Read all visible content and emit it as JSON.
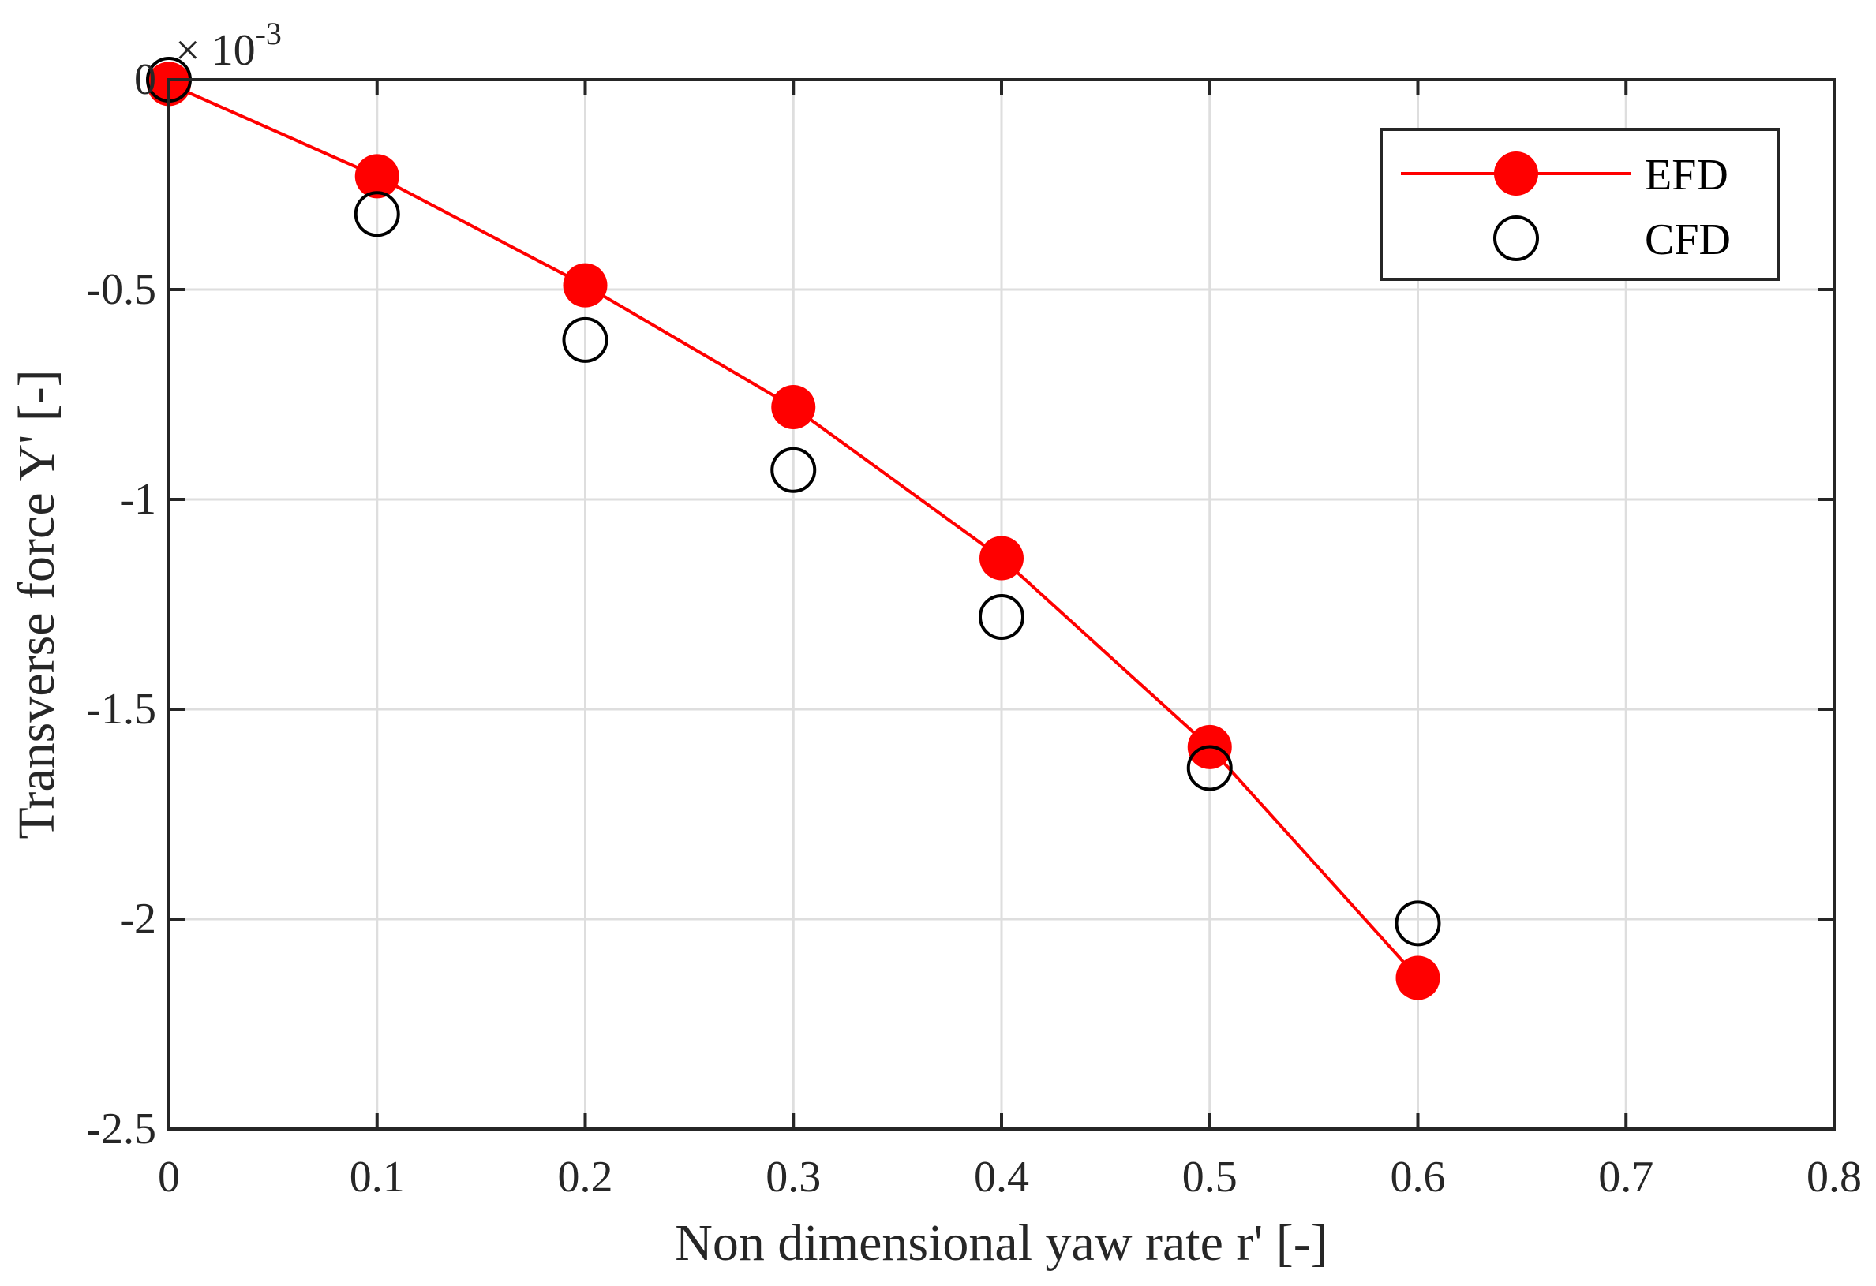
{
  "chart_data": {
    "type": "line",
    "title": "",
    "xlabel": "Non dimensional yaw rate r' [-]",
    "ylabel": "Transverse force Y' [-]",
    "y_multiplier_label": "× 10",
    "y_multiplier_exponent": "-3",
    "xlim": [
      0,
      0.8
    ],
    "ylim": [
      -2.5,
      0
    ],
    "xticks": [
      0,
      0.1,
      0.2,
      0.3,
      0.4,
      0.5,
      0.6,
      0.7,
      0.8
    ],
    "xtick_labels": [
      "0",
      "0.1",
      "0.2",
      "0.3",
      "0.4",
      "0.5",
      "0.6",
      "0.7",
      "0.8"
    ],
    "yticks": [
      0,
      -0.5,
      -1,
      -1.5,
      -2,
      -2.5
    ],
    "ytick_labels": [
      "0",
      "-0.5",
      "-1",
      "-1.5",
      "-2",
      "-2.5"
    ],
    "grid": true,
    "legend_position": "top-right",
    "series": [
      {
        "name": "EFD",
        "style": "line-with-filled-markers",
        "color": "#ff0000",
        "x": [
          0,
          0.1,
          0.2,
          0.3,
          0.4,
          0.5,
          0.6
        ],
        "y": [
          -0.01,
          -0.23,
          -0.49,
          -0.78,
          -1.14,
          -1.59,
          -2.14
        ]
      },
      {
        "name": "CFD",
        "style": "open-markers",
        "color": "#000000",
        "x": [
          0,
          0.1,
          0.2,
          0.3,
          0.4,
          0.5,
          0.6
        ],
        "y": [
          0,
          -0.32,
          -0.62,
          -0.93,
          -1.28,
          -1.64,
          -2.01
        ]
      }
    ]
  }
}
